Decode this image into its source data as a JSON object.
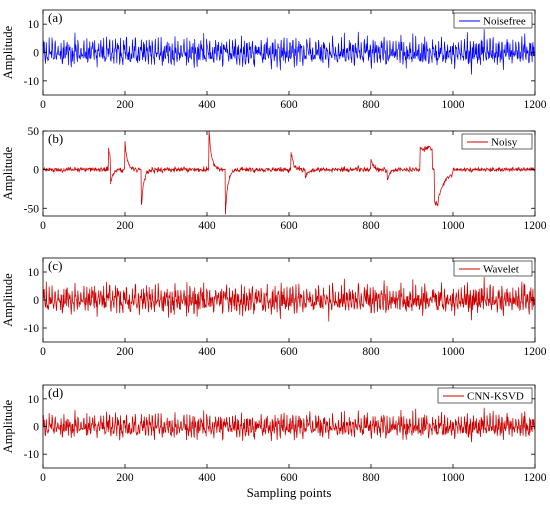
{
  "chart_data": [
    {
      "type": "line",
      "panel_label": "(a)",
      "ylabel": "Amplitude",
      "xlabel": "",
      "xlim": [
        0,
        1200
      ],
      "ylim": [
        -15,
        15
      ],
      "xticks": [
        0,
        200,
        400,
        600,
        800,
        1000,
        1200
      ],
      "yticks": [
        -10,
        0,
        10
      ],
      "legend": "top-right",
      "series": [
        {
          "name": "Noisefree",
          "color": "#0000ff",
          "n_points": 1200,
          "description": "zero-mean oscillatory signal, mostly within about -6 to 6"
        }
      ]
    },
    {
      "type": "line",
      "panel_label": "(b)",
      "ylabel": "Amplitude",
      "xlabel": "",
      "xlim": [
        0,
        1200
      ],
      "ylim": [
        -60,
        50
      ],
      "xticks": [
        0,
        200,
        400,
        600,
        800,
        1000,
        1200
      ],
      "yticks": [
        -50,
        0,
        50
      ],
      "legend": "top-right",
      "series": [
        {
          "name": "Noisy",
          "color": "#cc0000",
          "n_points": 1200,
          "spikes": [
            {
              "x": 160,
              "y": 28
            },
            {
              "x": 165,
              "y": -30
            },
            {
              "x": 200,
              "y": 35
            },
            {
              "x": 240,
              "y": -48
            },
            {
              "x": 405,
              "y": 50
            },
            {
              "x": 445,
              "y": -57
            },
            {
              "x": 605,
              "y": 22
            },
            {
              "x": 640,
              "y": -10
            },
            {
              "x": 800,
              "y": 14
            },
            {
              "x": 840,
              "y": -14
            },
            {
              "x": 920,
              "y": 30
            },
            {
              "x": 960,
              "y": -47
            }
          ]
        }
      ]
    },
    {
      "type": "line",
      "panel_label": "(c)",
      "ylabel": "Amplitude",
      "xlabel": "",
      "xlim": [
        0,
        1200
      ],
      "ylim": [
        -15,
        15
      ],
      "xticks": [
        0,
        200,
        400,
        600,
        800,
        1000,
        1200
      ],
      "yticks": [
        -10,
        0,
        10
      ],
      "legend": "top-right",
      "series": [
        {
          "name": "Wavelet",
          "color": "#cc0000",
          "n_points": 1200
        }
      ]
    },
    {
      "type": "line",
      "panel_label": "(d)",
      "ylabel": "Amplitude",
      "xlabel": "Sampling points",
      "xlim": [
        0,
        1200
      ],
      "ylim": [
        -15,
        15
      ],
      "xticks": [
        0,
        200,
        400,
        600,
        800,
        1000,
        1200
      ],
      "yticks": [
        -10,
        0,
        10
      ],
      "legend": "top-right",
      "series": [
        {
          "name": "CNN-KSVD",
          "color": "#cc0000",
          "n_points": 1200
        }
      ]
    }
  ]
}
